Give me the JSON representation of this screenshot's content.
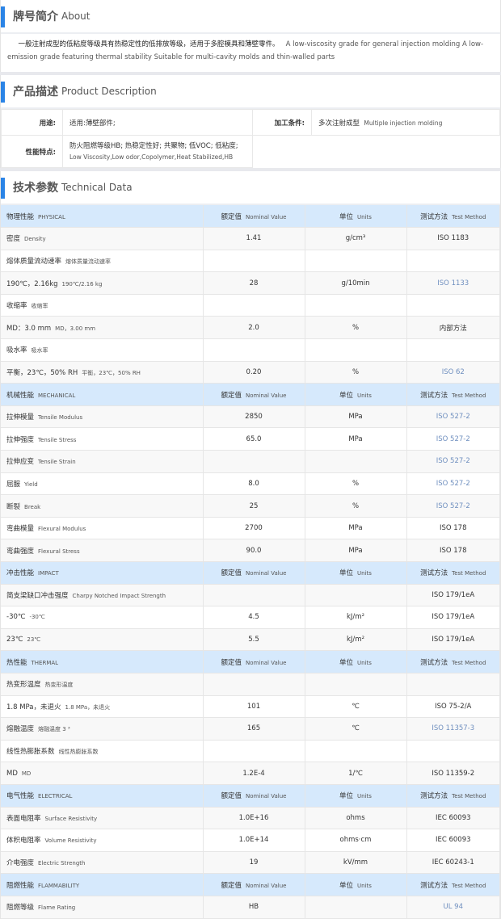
{
  "about": {
    "title": "牌号简介",
    "title_en": "About",
    "text_cn": "一般注射成型的低粘度等级具有热稳定性的低排放等级，适用于多腔模具和薄壁零件。",
    "text_en": "A low-viscosity grade for general injection molding A low-emission grade featuring thermal stability Suitable for multi-cavity molds and thin-walled parts"
  },
  "product": {
    "title": "产品描述",
    "title_en": "Product Description",
    "use_label": "用途:",
    "use_value": "适用:薄壁部件;",
    "process_label": "加工条件:",
    "process_value_cn": "多次注射成型",
    "process_value_en": "Multiple injection molding",
    "feature_label": "性能特点:",
    "feature_value_cn": "防火阻燃等级HB; 热稳定性好; 共聚物; 低VOC; 低粘度;",
    "feature_value_en": "Low Viscosity,Low odor,Copolymer,Heat Stabilized,HB"
  },
  "tech": {
    "title": "技术参数",
    "title_en": "Technical Data",
    "col_value": "额定值",
    "col_value_en": "Nominal Value",
    "col_unit": "单位",
    "col_unit_en": "Units",
    "col_method": "测试方法",
    "col_method_en": "Test Method",
    "link_color": "#6f8fbf",
    "header_color": "#d6e9fc",
    "sections": [
      {
        "cn": "物理性能",
        "en": "PHYSICAL",
        "rows": [
          {
            "cn": "密度",
            "en": "Density",
            "v": "1.41",
            "u": "g/cm³",
            "m": "ISO 1183"
          },
          {
            "cn": "熔体质量流动速率",
            "en": "熔体质量流动速率",
            "v": "",
            "u": "",
            "m": ""
          },
          {
            "cn": "190℃，2.16kg",
            "en": "190℃/2.16 kg",
            "v": "28",
            "u": "g/10min",
            "m": "ISO 1133",
            "link": true,
            "indent": true
          },
          {
            "cn": "收缩率",
            "en": "收缩率",
            "v": "",
            "u": "",
            "m": ""
          },
          {
            "cn": "MD：3.0 mm",
            "en": "MD，3.00 mm",
            "v": "2.0",
            "u": "%",
            "m": "内部方法",
            "indent": true
          },
          {
            "cn": "吸水率",
            "en": "吸水率",
            "v": "",
            "u": "",
            "m": ""
          },
          {
            "cn": "平衡，23℃，50% RH",
            "en": "平衡，23℃，50% RH",
            "v": "0.20",
            "u": "%",
            "m": "ISO 62",
            "link": true,
            "indent": true
          }
        ]
      },
      {
        "cn": "机械性能",
        "en": "MECHANICAL",
        "rows": [
          {
            "cn": "拉伸模量",
            "en": "Tensile Modulus",
            "v": "2850",
            "u": "MPa",
            "m": "ISO 527-2",
            "link": true
          },
          {
            "cn": "拉伸强度",
            "en": "Tensile Stress",
            "v": "65.0",
            "u": "MPa",
            "m": "ISO 527-2",
            "link": true
          },
          {
            "cn": "拉伸应变",
            "en": "Tensile Strain",
            "v": "",
            "u": "",
            "m": "ISO 527-2",
            "link": true
          },
          {
            "cn": "屈服",
            "en": "Yield",
            "v": "8.0",
            "u": "%",
            "m": "ISO 527-2",
            "link": true,
            "indent": true
          },
          {
            "cn": "断裂",
            "en": "Break",
            "v": "25",
            "u": "%",
            "m": "ISO 527-2",
            "link": true,
            "indent": true
          },
          {
            "cn": "弯曲模量",
            "en": "Flexural Modulus",
            "v": "2700",
            "u": "MPa",
            "m": "ISO 178"
          },
          {
            "cn": "弯曲强度",
            "en": "Flexural Stress",
            "v": "90.0",
            "u": "MPa",
            "m": "ISO 178"
          }
        ]
      },
      {
        "cn": "冲击性能",
        "en": "IMPACT",
        "rows": [
          {
            "cn": "简支梁缺口冲击强度",
            "en": "Charpy Notched Impact Strength",
            "v": "",
            "u": "",
            "m": "ISO 179/1eA"
          },
          {
            "cn": "-30℃",
            "en": "-30℃",
            "v": "4.5",
            "u": "kJ/m²",
            "m": "ISO 179/1eA",
            "indent": true
          },
          {
            "cn": "23℃",
            "en": "23℃",
            "v": "5.5",
            "u": "kJ/m²",
            "m": "ISO 179/1eA",
            "indent": true
          }
        ]
      },
      {
        "cn": "热性能",
        "en": "THERMAL",
        "rows": [
          {
            "cn": "热变形温度",
            "en": "热变形温度",
            "v": "",
            "u": "",
            "m": ""
          },
          {
            "cn": "1.8 MPa，未退火",
            "en": "1.8 MPa，未退火",
            "v": "101",
            "u": "℃",
            "m": "ISO 75-2/A",
            "indent": true
          },
          {
            "cn": "熔融温度",
            "en": "熔融温度  3 ³",
            "v": "165",
            "u": "℃",
            "m": "ISO 11357-3",
            "link": true
          },
          {
            "cn": "线性热膨胀系数",
            "en": "线性热膨胀系数",
            "v": "",
            "u": "",
            "m": ""
          },
          {
            "cn": "MD",
            "en": "MD",
            "v": "1.2E-4",
            "u": "1/℃",
            "m": "ISO 11359-2",
            "indent": true
          }
        ]
      },
      {
        "cn": "电气性能",
        "en": "ELECTRICAL",
        "rows": [
          {
            "cn": "表面电阻率",
            "en": "Surface Resistivity",
            "v": "1.0E+16",
            "u": "ohms",
            "m": "IEC 60093"
          },
          {
            "cn": "体积电阻率",
            "en": "Volume Resistivity",
            "v": "1.0E+14",
            "u": "ohms·cm",
            "m": "IEC 60093"
          },
          {
            "cn": "介电强度",
            "en": "Electric Strength",
            "v": "19",
            "u": "kV/mm",
            "m": "IEC 60243-1"
          }
        ]
      },
      {
        "cn": "阻燃性能",
        "en": "FLAMMABILITY",
        "rows": [
          {
            "cn": "阻燃等级",
            "en": "Flame Rating",
            "v": "HB",
            "u": "",
            "m": "UL 94",
            "link": true
          }
        ]
      }
    ]
  }
}
